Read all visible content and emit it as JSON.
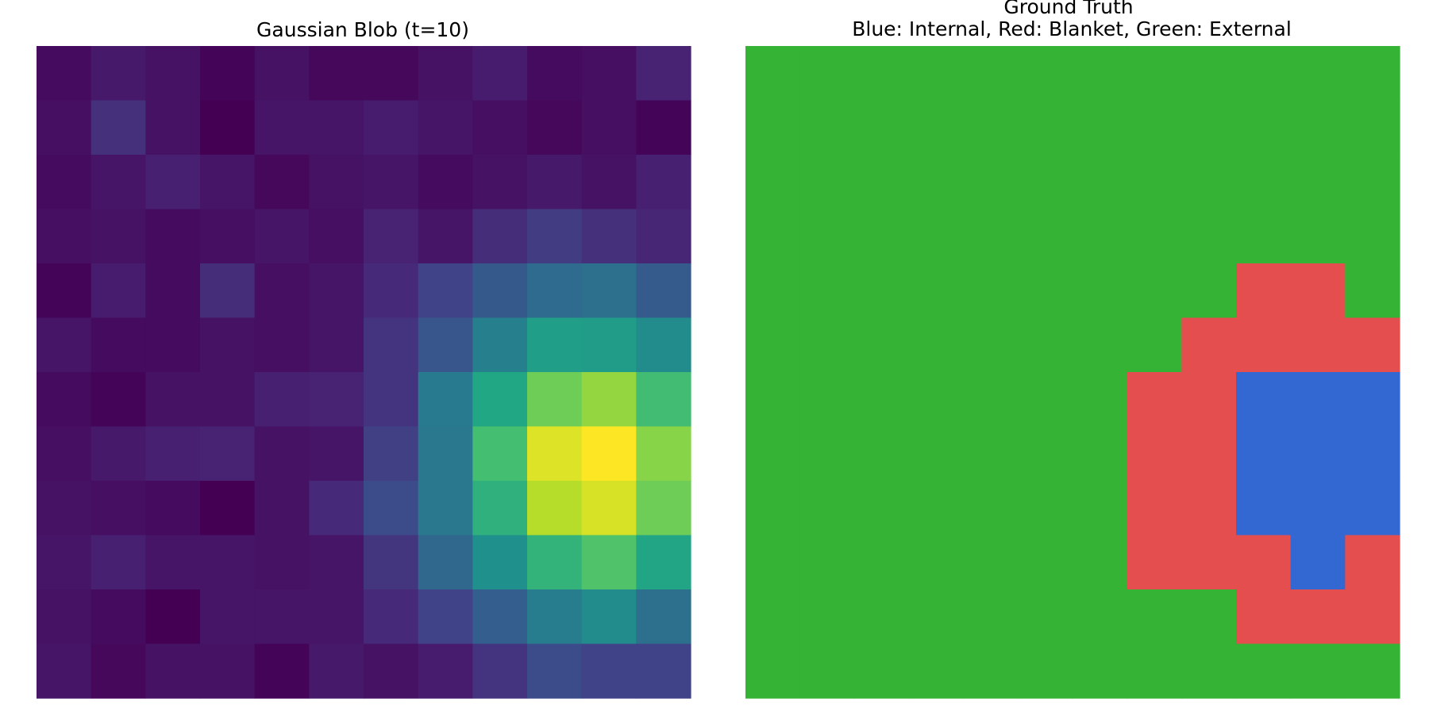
{
  "chart_data": [
    {
      "type": "heatmap",
      "title": "Gaussian Blob (t=10)",
      "colormap": "viridis",
      "value_range": [
        0,
        1
      ],
      "axes_visible": false,
      "grid": false,
      "rows": 12,
      "cols": 12,
      "values": [
        [
          0.03,
          0.07,
          0.05,
          0.01,
          0.05,
          0.02,
          0.02,
          0.05,
          0.08,
          0.03,
          0.04,
          0.1
        ],
        [
          0.04,
          0.14,
          0.05,
          0.0,
          0.06,
          0.06,
          0.08,
          0.06,
          0.04,
          0.02,
          0.04,
          0.01
        ],
        [
          0.03,
          0.06,
          0.09,
          0.06,
          0.02,
          0.05,
          0.06,
          0.03,
          0.05,
          0.07,
          0.05,
          0.09
        ],
        [
          0.04,
          0.05,
          0.03,
          0.04,
          0.06,
          0.04,
          0.1,
          0.06,
          0.13,
          0.18,
          0.14,
          0.11
        ],
        [
          0.01,
          0.08,
          0.03,
          0.13,
          0.04,
          0.06,
          0.12,
          0.2,
          0.28,
          0.35,
          0.37,
          0.29
        ],
        [
          0.06,
          0.03,
          0.03,
          0.05,
          0.04,
          0.06,
          0.15,
          0.27,
          0.43,
          0.56,
          0.55,
          0.48
        ],
        [
          0.03,
          0.01,
          0.05,
          0.05,
          0.09,
          0.1,
          0.15,
          0.41,
          0.6,
          0.78,
          0.84,
          0.69
        ],
        [
          0.04,
          0.07,
          0.09,
          0.1,
          0.05,
          0.06,
          0.19,
          0.4,
          0.7,
          0.95,
          1.0,
          0.82
        ],
        [
          0.05,
          0.04,
          0.03,
          0.0,
          0.05,
          0.12,
          0.23,
          0.4,
          0.64,
          0.89,
          0.94,
          0.78
        ],
        [
          0.06,
          0.09,
          0.06,
          0.06,
          0.05,
          0.06,
          0.16,
          0.34,
          0.5,
          0.65,
          0.72,
          0.59
        ],
        [
          0.05,
          0.03,
          0.0,
          0.06,
          0.06,
          0.06,
          0.12,
          0.2,
          0.3,
          0.42,
          0.48,
          0.37
        ],
        [
          0.06,
          0.02,
          0.05,
          0.05,
          0.01,
          0.07,
          0.05,
          0.08,
          0.15,
          0.23,
          0.2,
          0.2
        ]
      ]
    },
    {
      "type": "heatmap",
      "title": "Ground Truth\nBlue: Internal, Red: Blanket, Green: External",
      "axes_visible": false,
      "grid": false,
      "rows": 12,
      "cols": 12,
      "classes": {
        "internal": "#3368d2",
        "blanket": "#e54e4e",
        "external": "#35b335"
      },
      "values": [
        [
          "external",
          "external",
          "external",
          "external",
          "external",
          "external",
          "external",
          "external",
          "external",
          "external",
          "external",
          "external"
        ],
        [
          "external",
          "external",
          "external",
          "external",
          "external",
          "external",
          "external",
          "external",
          "external",
          "external",
          "external",
          "external"
        ],
        [
          "external",
          "external",
          "external",
          "external",
          "external",
          "external",
          "external",
          "external",
          "external",
          "external",
          "external",
          "external"
        ],
        [
          "external",
          "external",
          "external",
          "external",
          "external",
          "external",
          "external",
          "external",
          "external",
          "external",
          "external",
          "external"
        ],
        [
          "external",
          "external",
          "external",
          "external",
          "external",
          "external",
          "external",
          "external",
          "external",
          "blanket",
          "blanket",
          "external"
        ],
        [
          "external",
          "external",
          "external",
          "external",
          "external",
          "external",
          "external",
          "external",
          "blanket",
          "blanket",
          "blanket",
          "blanket"
        ],
        [
          "external",
          "external",
          "external",
          "external",
          "external",
          "external",
          "external",
          "blanket",
          "blanket",
          "internal",
          "internal",
          "internal"
        ],
        [
          "external",
          "external",
          "external",
          "external",
          "external",
          "external",
          "external",
          "blanket",
          "blanket",
          "internal",
          "internal",
          "internal"
        ],
        [
          "external",
          "external",
          "external",
          "external",
          "external",
          "external",
          "external",
          "blanket",
          "blanket",
          "internal",
          "internal",
          "internal"
        ],
        [
          "external",
          "external",
          "external",
          "external",
          "external",
          "external",
          "external",
          "blanket",
          "blanket",
          "blanket",
          "internal",
          "blanket"
        ],
        [
          "external",
          "external",
          "external",
          "external",
          "external",
          "external",
          "external",
          "external",
          "external",
          "blanket",
          "blanket",
          "blanket"
        ],
        [
          "external",
          "external",
          "external",
          "external",
          "external",
          "external",
          "external",
          "external",
          "external",
          "external",
          "external",
          "external"
        ]
      ]
    }
  ]
}
